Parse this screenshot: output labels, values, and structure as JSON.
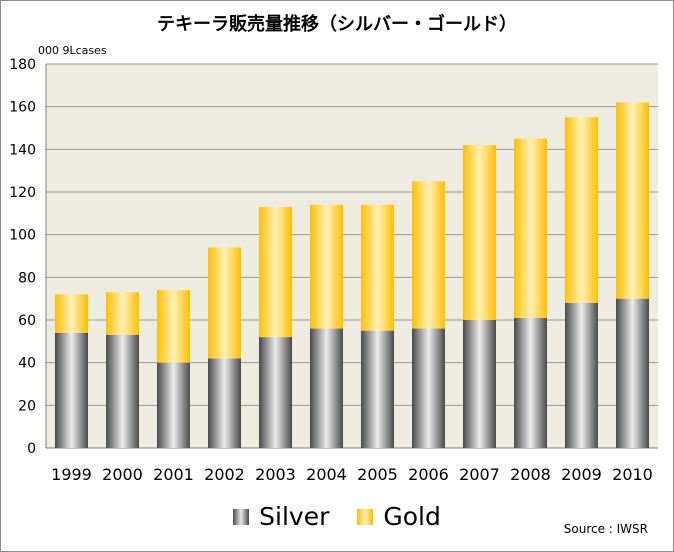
{
  "chart_data": {
    "type": "bar",
    "stacked": true,
    "title": "テキーラ販売量推移（シルバー・ゴールド）",
    "unit_label": "000 9Lcases",
    "categories": [
      "1999",
      "2000",
      "2001",
      "2002",
      "2003",
      "2004",
      "2005",
      "2006",
      "2007",
      "2008",
      "2009",
      "2010"
    ],
    "series": [
      {
        "name": "Silver",
        "values": [
          54,
          53,
          40,
          42,
          52,
          56,
          55,
          56,
          60,
          61,
          68,
          70
        ]
      },
      {
        "name": "Gold",
        "values": [
          18,
          20,
          34,
          52,
          61,
          58,
          59,
          69,
          82,
          84,
          87,
          92
        ]
      }
    ],
    "ylim": [
      0,
      180
    ],
    "yticks": [
      0,
      20,
      40,
      60,
      80,
      100,
      120,
      140,
      160,
      180
    ],
    "grid": true,
    "legend_position": "bottom",
    "source": "Source : IWSR",
    "colors": {
      "plot_background": "#eeece1",
      "gridline": "#9a9a9a",
      "silver": "#8c8c8c",
      "gold": "#ffc000"
    }
  }
}
